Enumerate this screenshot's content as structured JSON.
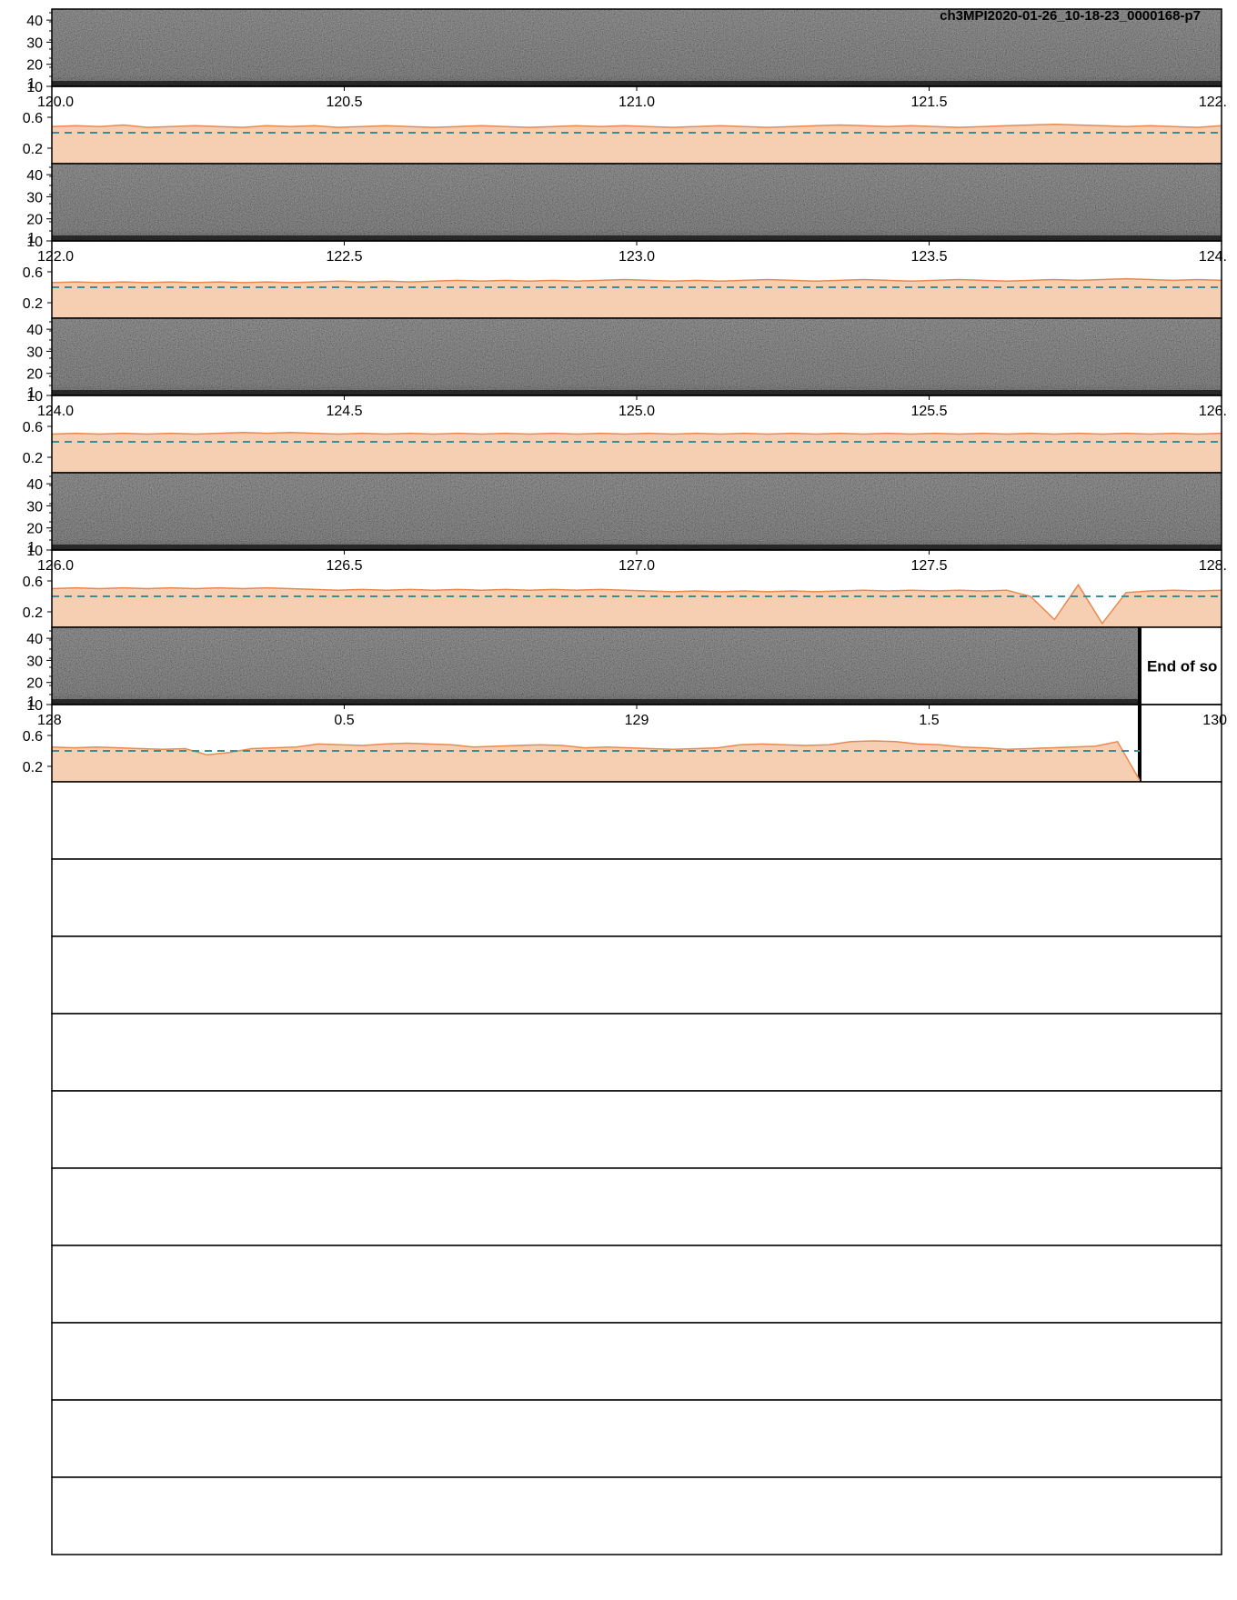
{
  "figure": {
    "title": "ch3MPI2020-01-26_10-18-23_0000168-p7",
    "end_label": "End of so"
  },
  "colors": {
    "spectrogram_bg": "#3a3a3a",
    "level_fill": "#f6cfb3",
    "level_line": "#e8894f",
    "threshold_line": "#3a8f96",
    "frame": "#000000"
  },
  "chart_data": {
    "type": "line",
    "y_spec_ticks": [
      "40",
      "30",
      "20",
      "10"
    ],
    "y_level_ticks": [
      "1",
      "0.6",
      "0.2"
    ],
    "threshold": 0.4,
    "rows": [
      {
        "spec_range": [
          10,
          45
        ],
        "x_ticks": [
          "120.0",
          "120.5",
          "121.0",
          "121.5",
          "122."
        ],
        "level": [
          0.48,
          0.49,
          0.48,
          0.5,
          0.47,
          0.48,
          0.49,
          0.48,
          0.47,
          0.49,
          0.48,
          0.49,
          0.47,
          0.48,
          0.49,
          0.48,
          0.47,
          0.48,
          0.49,
          0.48,
          0.47,
          0.48,
          0.49,
          0.48,
          0.49,
          0.48,
          0.47,
          0.48,
          0.49,
          0.48,
          0.47,
          0.48,
          0.49,
          0.5,
          0.49,
          0.48,
          0.49,
          0.48,
          0.47,
          0.48,
          0.49,
          0.5,
          0.51,
          0.5,
          0.49,
          0.48,
          0.49,
          0.48,
          0.47,
          0.49
        ]
      },
      {
        "spec_range": [
          10,
          45
        ],
        "x_ticks": [
          "122.0",
          "122.5",
          "123.0",
          "123.5",
          "124."
        ],
        "level": [
          0.46,
          0.47,
          0.46,
          0.47,
          0.46,
          0.47,
          0.46,
          0.47,
          0.46,
          0.47,
          0.46,
          0.47,
          0.48,
          0.47,
          0.48,
          0.47,
          0.48,
          0.49,
          0.48,
          0.49,
          0.48,
          0.49,
          0.48,
          0.49,
          0.5,
          0.49,
          0.48,
          0.49,
          0.48,
          0.49,
          0.5,
          0.49,
          0.48,
          0.49,
          0.5,
          0.49,
          0.48,
          0.49,
          0.5,
          0.49,
          0.48,
          0.49,
          0.5,
          0.49,
          0.5,
          0.51,
          0.5,
          0.49,
          0.5,
          0.49
        ]
      },
      {
        "spec_range": [
          10,
          45
        ],
        "x_ticks": [
          "124.0",
          "124.5",
          "125.0",
          "125.5",
          "126."
        ],
        "level": [
          0.5,
          0.51,
          0.5,
          0.51,
          0.5,
          0.51,
          0.5,
          0.51,
          0.52,
          0.51,
          0.52,
          0.51,
          0.5,
          0.51,
          0.5,
          0.51,
          0.5,
          0.51,
          0.5,
          0.51,
          0.5,
          0.51,
          0.5,
          0.51,
          0.5,
          0.51,
          0.5,
          0.51,
          0.5,
          0.51,
          0.5,
          0.51,
          0.5,
          0.51,
          0.5,
          0.51,
          0.5,
          0.51,
          0.5,
          0.51,
          0.5,
          0.51,
          0.5,
          0.51,
          0.5,
          0.51,
          0.5,
          0.51,
          0.5,
          0.51
        ]
      },
      {
        "spec_range": [
          10,
          45
        ],
        "x_ticks": [
          "126.0",
          "126.5",
          "127.0",
          "127.5",
          "128."
        ],
        "level": [
          0.5,
          0.51,
          0.5,
          0.51,
          0.5,
          0.51,
          0.5,
          0.51,
          0.5,
          0.51,
          0.5,
          0.49,
          0.48,
          0.49,
          0.48,
          0.49,
          0.48,
          0.49,
          0.48,
          0.49,
          0.48,
          0.49,
          0.48,
          0.49,
          0.48,
          0.47,
          0.46,
          0.47,
          0.46,
          0.47,
          0.46,
          0.47,
          0.46,
          0.47,
          0.48,
          0.47,
          0.48,
          0.47,
          0.48,
          0.47,
          0.48,
          0.4,
          0.1,
          0.55,
          0.05,
          0.45,
          0.47,
          0.48,
          0.47,
          0.48
        ]
      },
      {
        "spec_range": [
          10,
          45
        ],
        "x_ticks": [
          "128",
          "0.5",
          "129",
          "1.5",
          "130"
        ],
        "level": [
          0.45,
          0.44,
          0.45,
          0.44,
          0.43,
          0.42,
          0.43,
          0.35,
          0.38,
          0.43,
          0.44,
          0.45,
          0.49,
          0.48,
          0.47,
          0.49,
          0.5,
          0.49,
          0.48,
          0.45,
          0.46,
          0.47,
          0.48,
          0.47,
          0.44,
          0.45,
          0.44,
          0.43,
          0.42,
          0.43,
          0.44,
          0.48,
          0.49,
          0.48,
          0.47,
          0.48,
          0.52,
          0.53,
          0.52,
          0.49,
          0.48,
          0.45,
          0.44,
          0.42,
          0.43,
          0.44,
          0.45,
          0.46,
          0.52,
          0.02
        ],
        "data_end_fraction": 0.93
      }
    ]
  }
}
